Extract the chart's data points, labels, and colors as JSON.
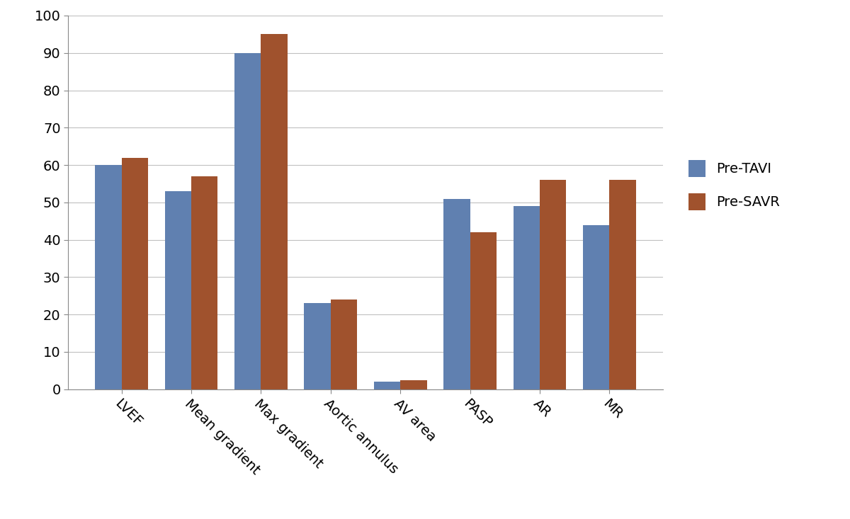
{
  "categories": [
    "LVEF",
    "Mean gradient",
    "Max gradient",
    "Aortic annulus",
    "AV area",
    "PASP",
    "AR",
    "MR"
  ],
  "pre_tavi": [
    60,
    53,
    90,
    23,
    2,
    51,
    49,
    44
  ],
  "pre_savr": [
    62,
    57,
    95,
    24,
    2.5,
    42,
    56,
    56
  ],
  "tavi_color": "#6080B0",
  "savr_color": "#A0522D",
  "legend_labels": [
    "Pre-TAVI",
    "Pre-SAVR"
  ],
  "ylim": [
    0,
    100
  ],
  "yticks": [
    0,
    10,
    20,
    30,
    40,
    50,
    60,
    70,
    80,
    90,
    100
  ],
  "bar_width": 0.38,
  "grid_color": "#C0C0C0",
  "background_color": "#FFFFFF",
  "tick_label_fontsize": 14,
  "legend_fontsize": 14,
  "axis_label_rotation": -45,
  "figsize": [
    12.0,
    7.33
  ],
  "dpi": 100
}
